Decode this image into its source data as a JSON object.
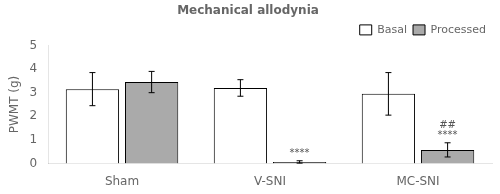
{
  "chart_data": {
    "type": "bar",
    "title": "Mechanical allodynia",
    "ylabel": "PWMT (g)",
    "categories": [
      "Sham",
      "V-SNI",
      "MC-SNI"
    ],
    "series": [
      {
        "name": "Basal",
        "color": "#ffffff",
        "values": [
          3.15,
          3.2,
          2.95
        ],
        "errors": [
          0.7,
          0.35,
          0.9
        ]
      },
      {
        "name": "Processed",
        "color": "#aaaaaa",
        "values": [
          3.45,
          0.07,
          0.58
        ],
        "errors": [
          0.45,
          0.05,
          0.3
        ]
      }
    ],
    "ylim": [
      0,
      5
    ],
    "yticks": [
      0,
      1,
      2,
      3,
      4,
      5
    ],
    "grid": false,
    "legend": "upper right",
    "annotations": [
      {
        "text": "****",
        "category": "V-SNI",
        "series": "Processed"
      },
      {
        "text": "****",
        "category": "MC-SNI",
        "series": "Processed"
      },
      {
        "text": "##",
        "category": "MC-SNI",
        "series": "Processed"
      }
    ]
  }
}
